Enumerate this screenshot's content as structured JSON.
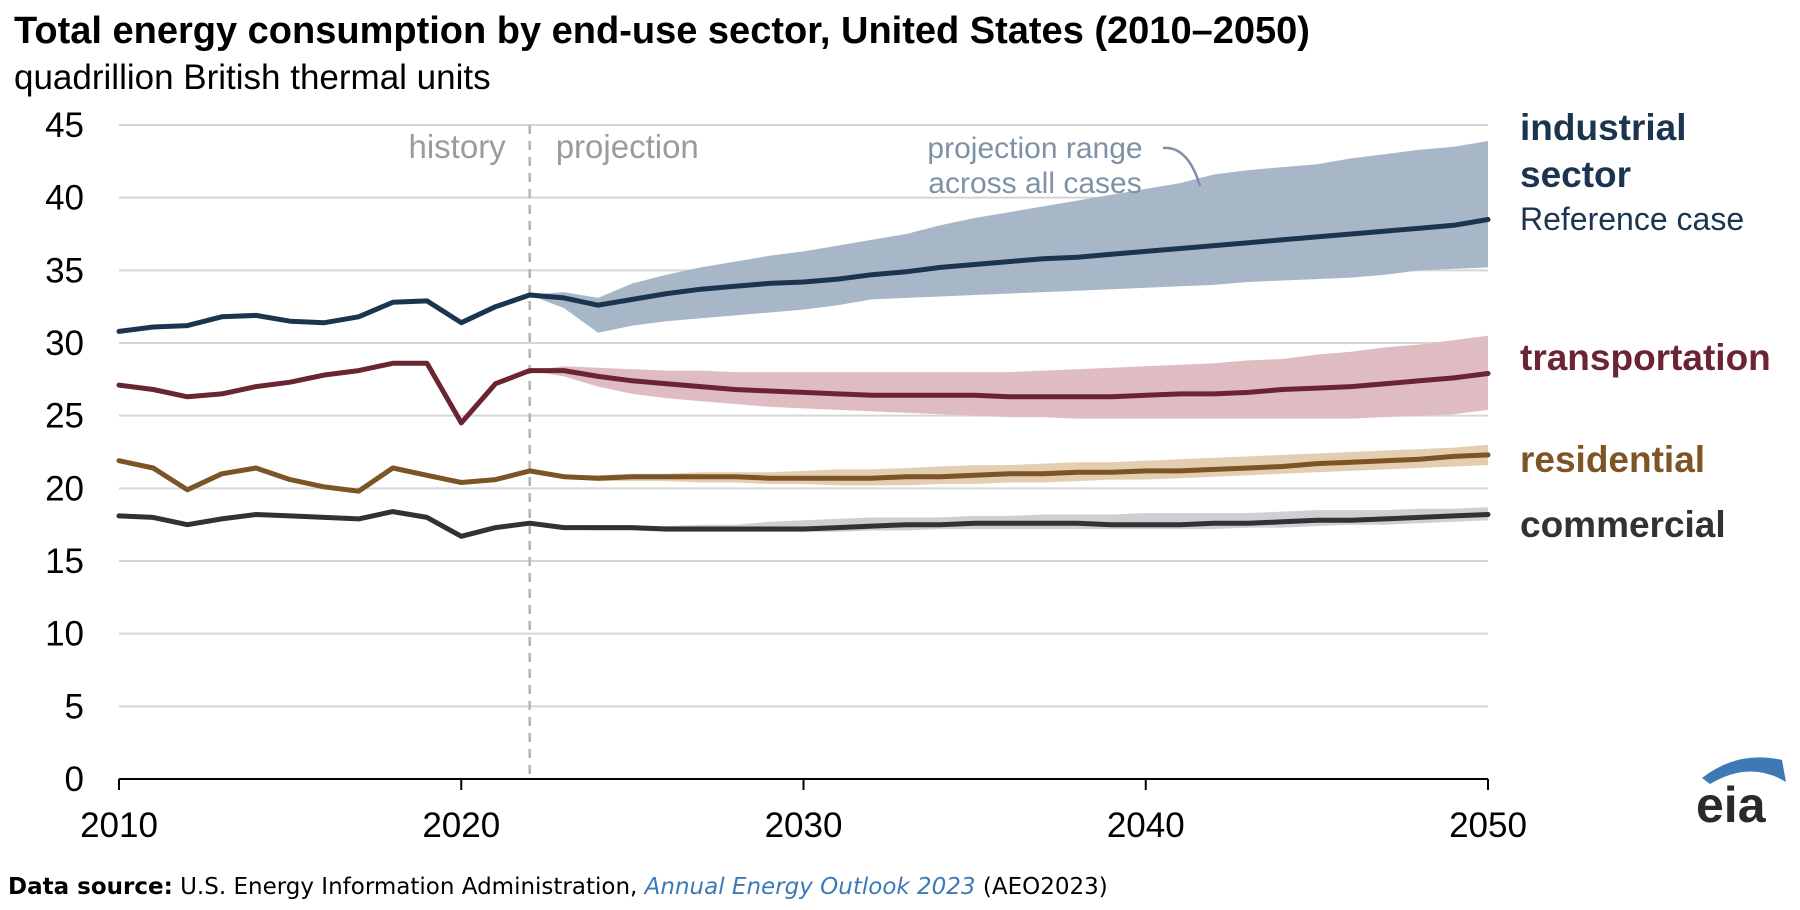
{
  "title": "Total energy consumption by end-use sector, United States (2010–2050)",
  "subtitle": "quadrillion British thermal units",
  "source": {
    "label": "Data source:",
    "agency": "U.S. Energy Information Administration, ",
    "publication": "Annual Energy Outlook 2023",
    "suffix": "(AEO2023)"
  },
  "logo_text": "eia",
  "colors": {
    "industrial": "#1b3550",
    "industrial_band": "#a8b7c7",
    "transportation": "#6b2532",
    "transportation_band": "#dfbcc1",
    "residential": "#7d5426",
    "residential_band": "#e3ceb2",
    "commercial": "#303235",
    "commercial_band": "#cdcfd1",
    "grid": "#d6d6d6",
    "annotation": "#9b9b9b",
    "band_annotation": "#7e91a6",
    "logo": "#3d7ab5"
  },
  "chart_data": {
    "type": "line",
    "title": "Total energy consumption by end-use sector, United States (2010–2050)",
    "ylabel": "quadrillion British thermal units",
    "xlim": [
      2010,
      2050
    ],
    "ylim": [
      0,
      45
    ],
    "x_ticks": [
      2010,
      2020,
      2030,
      2040,
      2050
    ],
    "y_ticks": [
      0,
      5,
      10,
      15,
      20,
      25,
      30,
      35,
      40,
      45
    ],
    "history_projection_split": 2022,
    "annotations": {
      "history": "history",
      "projection": "projection",
      "range_line1": "projection range",
      "range_line2": "across all cases"
    },
    "series": [
      {
        "key": "industrial",
        "name_line1": "industrial",
        "name_line2": "sector",
        "name_note": "Reference case",
        "x": [
          2010,
          2011,
          2012,
          2013,
          2014,
          2015,
          2016,
          2017,
          2018,
          2019,
          2020,
          2021,
          2022,
          2023,
          2024,
          2025,
          2026,
          2027,
          2028,
          2029,
          2030,
          2031,
          2032,
          2033,
          2034,
          2035,
          2036,
          2037,
          2038,
          2039,
          2040,
          2041,
          2042,
          2043,
          2044,
          2045,
          2046,
          2047,
          2048,
          2049,
          2050
        ],
        "values": [
          30.8,
          31.1,
          31.2,
          31.8,
          31.9,
          31.5,
          31.4,
          31.8,
          32.8,
          32.9,
          31.4,
          32.5,
          33.3,
          33.1,
          32.6,
          33.0,
          33.4,
          33.7,
          33.9,
          34.1,
          34.2,
          34.4,
          34.7,
          34.9,
          35.2,
          35.4,
          35.6,
          35.8,
          35.9,
          36.1,
          36.3,
          36.5,
          36.7,
          36.9,
          37.1,
          37.3,
          37.5,
          37.7,
          37.9,
          38.1,
          38.5
        ],
        "band_x": [
          2022,
          2023,
          2024,
          2025,
          2026,
          2027,
          2028,
          2029,
          2030,
          2031,
          2032,
          2033,
          2034,
          2035,
          2036,
          2037,
          2038,
          2039,
          2040,
          2041,
          2042,
          2043,
          2044,
          2045,
          2046,
          2047,
          2048,
          2049,
          2050
        ],
        "band_low": [
          33.3,
          32.4,
          30.7,
          31.2,
          31.5,
          31.7,
          31.9,
          32.1,
          32.3,
          32.6,
          33.0,
          33.1,
          33.2,
          33.3,
          33.4,
          33.5,
          33.6,
          33.7,
          33.8,
          33.9,
          34.0,
          34.2,
          34.3,
          34.4,
          34.5,
          34.7,
          35.0,
          35.1,
          35.2
        ],
        "band_high": [
          33.3,
          33.5,
          33.1,
          34.1,
          34.7,
          35.2,
          35.6,
          36.0,
          36.3,
          36.7,
          37.1,
          37.5,
          38.1,
          38.6,
          39.0,
          39.4,
          39.8,
          40.2,
          40.6,
          41.0,
          41.6,
          41.9,
          42.1,
          42.3,
          42.7,
          43.0,
          43.3,
          43.5,
          43.9
        ]
      },
      {
        "key": "transportation",
        "name_line1": "transportation",
        "x": [
          2010,
          2011,
          2012,
          2013,
          2014,
          2015,
          2016,
          2017,
          2018,
          2019,
          2020,
          2021,
          2022,
          2023,
          2024,
          2025,
          2026,
          2027,
          2028,
          2029,
          2030,
          2031,
          2032,
          2033,
          2034,
          2035,
          2036,
          2037,
          2038,
          2039,
          2040,
          2041,
          2042,
          2043,
          2044,
          2045,
          2046,
          2047,
          2048,
          2049,
          2050
        ],
        "values": [
          27.1,
          26.8,
          26.3,
          26.5,
          27.0,
          27.3,
          27.8,
          28.1,
          28.6,
          28.6,
          24.5,
          27.2,
          28.1,
          28.1,
          27.7,
          27.4,
          27.2,
          27.0,
          26.8,
          26.7,
          26.6,
          26.5,
          26.4,
          26.4,
          26.4,
          26.4,
          26.3,
          26.3,
          26.3,
          26.3,
          26.4,
          26.5,
          26.5,
          26.6,
          26.8,
          26.9,
          27.0,
          27.2,
          27.4,
          27.6,
          27.9
        ],
        "band_x": [
          2022,
          2023,
          2024,
          2025,
          2026,
          2027,
          2028,
          2029,
          2030,
          2031,
          2032,
          2033,
          2034,
          2035,
          2036,
          2037,
          2038,
          2039,
          2040,
          2041,
          2042,
          2043,
          2044,
          2045,
          2046,
          2047,
          2048,
          2049,
          2050
        ],
        "band_low": [
          28.1,
          27.7,
          27.0,
          26.5,
          26.2,
          26.0,
          25.8,
          25.6,
          25.5,
          25.4,
          25.3,
          25.2,
          25.1,
          25.0,
          24.9,
          24.9,
          24.8,
          24.8,
          24.8,
          24.8,
          24.8,
          24.8,
          24.8,
          24.8,
          24.8,
          24.9,
          25.0,
          25.1,
          25.4
        ],
        "band_high": [
          28.1,
          28.4,
          28.3,
          28.2,
          28.1,
          28.1,
          28.0,
          28.0,
          28.0,
          28.0,
          28.0,
          28.0,
          28.0,
          28.0,
          28.0,
          28.1,
          28.2,
          28.3,
          28.4,
          28.5,
          28.6,
          28.8,
          28.9,
          29.2,
          29.4,
          29.7,
          29.9,
          30.2,
          30.5
        ]
      },
      {
        "key": "residential",
        "name_line1": "residential",
        "x": [
          2010,
          2011,
          2012,
          2013,
          2014,
          2015,
          2016,
          2017,
          2018,
          2019,
          2020,
          2021,
          2022,
          2023,
          2024,
          2025,
          2026,
          2027,
          2028,
          2029,
          2030,
          2031,
          2032,
          2033,
          2034,
          2035,
          2036,
          2037,
          2038,
          2039,
          2040,
          2041,
          2042,
          2043,
          2044,
          2045,
          2046,
          2047,
          2048,
          2049,
          2050
        ],
        "values": [
          21.9,
          21.4,
          19.9,
          21.0,
          21.4,
          20.6,
          20.1,
          19.8,
          21.4,
          20.9,
          20.4,
          20.6,
          21.2,
          20.8,
          20.7,
          20.8,
          20.8,
          20.8,
          20.8,
          20.7,
          20.7,
          20.7,
          20.7,
          20.8,
          20.8,
          20.9,
          21.0,
          21.0,
          21.1,
          21.1,
          21.2,
          21.2,
          21.3,
          21.4,
          21.5,
          21.7,
          21.8,
          21.9,
          22.0,
          22.2,
          22.3
        ],
        "band_x": [
          2022,
          2023,
          2024,
          2025,
          2026,
          2027,
          2028,
          2029,
          2030,
          2031,
          2032,
          2033,
          2034,
          2035,
          2036,
          2037,
          2038,
          2039,
          2040,
          2041,
          2042,
          2043,
          2044,
          2045,
          2046,
          2047,
          2048,
          2049,
          2050
        ],
        "band_low": [
          21.2,
          20.7,
          20.5,
          20.5,
          20.5,
          20.4,
          20.4,
          20.3,
          20.3,
          20.2,
          20.2,
          20.2,
          20.3,
          20.3,
          20.4,
          20.4,
          20.5,
          20.6,
          20.6,
          20.7,
          20.8,
          20.9,
          21.0,
          21.1,
          21.2,
          21.3,
          21.4,
          21.5,
          21.6
        ],
        "band_high": [
          21.2,
          20.9,
          20.9,
          21.0,
          21.0,
          21.1,
          21.1,
          21.1,
          21.2,
          21.3,
          21.3,
          21.4,
          21.5,
          21.6,
          21.6,
          21.7,
          21.8,
          21.8,
          21.9,
          22.0,
          22.1,
          22.2,
          22.3,
          22.4,
          22.5,
          22.6,
          22.7,
          22.8,
          23.0
        ]
      },
      {
        "key": "commercial",
        "name_line1": "commercial",
        "x": [
          2010,
          2011,
          2012,
          2013,
          2014,
          2015,
          2016,
          2017,
          2018,
          2019,
          2020,
          2021,
          2022,
          2023,
          2024,
          2025,
          2026,
          2027,
          2028,
          2029,
          2030,
          2031,
          2032,
          2033,
          2034,
          2035,
          2036,
          2037,
          2038,
          2039,
          2040,
          2041,
          2042,
          2043,
          2044,
          2045,
          2046,
          2047,
          2048,
          2049,
          2050
        ],
        "values": [
          18.1,
          18.0,
          17.5,
          17.9,
          18.2,
          18.1,
          18.0,
          17.9,
          18.4,
          18.0,
          16.7,
          17.3,
          17.6,
          17.3,
          17.3,
          17.3,
          17.2,
          17.2,
          17.2,
          17.2,
          17.2,
          17.3,
          17.4,
          17.5,
          17.5,
          17.6,
          17.6,
          17.6,
          17.6,
          17.5,
          17.5,
          17.5,
          17.6,
          17.6,
          17.7,
          17.8,
          17.8,
          17.9,
          18.0,
          18.1,
          18.2
        ],
        "band_x": [
          2022,
          2023,
          2024,
          2025,
          2026,
          2027,
          2028,
          2029,
          2030,
          2031,
          2032,
          2033,
          2034,
          2035,
          2036,
          2037,
          2038,
          2039,
          2040,
          2041,
          2042,
          2043,
          2044,
          2045,
          2046,
          2047,
          2048,
          2049,
          2050
        ],
        "band_low": [
          17.6,
          17.2,
          17.1,
          17.1,
          17.0,
          17.0,
          17.0,
          17.0,
          17.0,
          17.0,
          17.1,
          17.1,
          17.2,
          17.2,
          17.2,
          17.2,
          17.2,
          17.2,
          17.2,
          17.2,
          17.2,
          17.3,
          17.3,
          17.4,
          17.5,
          17.5,
          17.6,
          17.7,
          17.8
        ],
        "band_high": [
          17.6,
          17.4,
          17.4,
          17.4,
          17.4,
          17.5,
          17.5,
          17.7,
          17.8,
          17.9,
          18.0,
          18.0,
          18.0,
          18.1,
          18.1,
          18.2,
          18.2,
          18.2,
          18.3,
          18.3,
          18.3,
          18.3,
          18.4,
          18.5,
          18.5,
          18.5,
          18.6,
          18.6,
          18.7
        ]
      }
    ]
  }
}
